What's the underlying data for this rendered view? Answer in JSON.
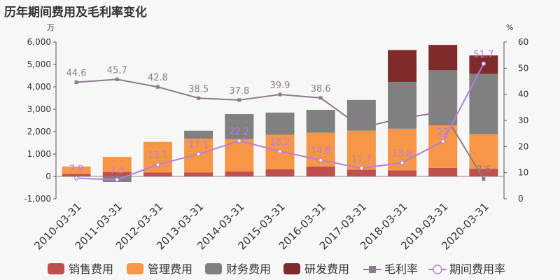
{
  "title": "历年期间费用及毛利率变化",
  "chart_data": {
    "type": "bar",
    "stacked": true,
    "left_unit": "万",
    "right_unit": "%",
    "categories": [
      "2010-03-31",
      "2011-03-31",
      "2012-03-31",
      "2013-03-31",
      "2014-03-31",
      "2015-03-31",
      "2016-03-31",
      "2017-03-31",
      "2018-03-31",
      "2019-03-31",
      "2020-03-31"
    ],
    "left_ylim": [
      -1000,
      6000
    ],
    "left_ticks": [
      "-1,000",
      "0",
      "1,000",
      "2,000",
      "3,000",
      "4,000",
      "5,000",
      "6,000"
    ],
    "right_ylim": [
      0,
      60
    ],
    "right_ticks": [
      "0",
      "10",
      "20",
      "30",
      "40",
      "50",
      "60"
    ],
    "bar_series": [
      {
        "name": "销售费用",
        "color": "#c0504d",
        "values": [
          110,
          200,
          180,
          180,
          220,
          320,
          440,
          300,
          270,
          380,
          340
        ]
      },
      {
        "name": "管理费用",
        "color": "#f79646",
        "values": [
          330,
          670,
          1360,
          1500,
          1440,
          1540,
          1510,
          1740,
          1860,
          1900,
          1540
        ]
      },
      {
        "name": "财务费用",
        "color": "#808080",
        "values": [
          0,
          -250,
          0,
          360,
          1120,
          990,
          1020,
          1370,
          2090,
          2460,
          2700
        ]
      },
      {
        "name": "研发费用",
        "color": "#7f2b2b",
        "values": [
          0,
          0,
          0,
          0,
          0,
          0,
          0,
          0,
          1420,
          1130,
          820
        ]
      }
    ],
    "line_series": [
      {
        "name": "毛利率",
        "color": "#8c7b8c",
        "marker": "square",
        "values": [
          44.6,
          45.7,
          42.8,
          38.5,
          37.8,
          39.9,
          38.6,
          27.3,
          30.8,
          33.3,
          7.6
        ],
        "labels": [
          "44.6",
          "45.7",
          "42.8",
          "38.5",
          "37.8",
          "39.9",
          "38.6",
          "27.3",
          "30.8",
          "33.3",
          "7.6"
        ]
      },
      {
        "name": "期间费用率",
        "color": "#b57edc",
        "marker": "circle",
        "values": [
          7.9,
          7.3,
          13.1,
          17.1,
          22.2,
          18.2,
          14.8,
          11.7,
          13.8,
          22,
          51.7
        ],
        "labels": [
          "7.9",
          "7.3",
          "13.1",
          "17.1",
          "22.2",
          "18.2",
          "14.8",
          "11.7",
          "13.8",
          "22",
          "51.7"
        ]
      }
    ],
    "legend_placement": "bottom",
    "grid": false
  }
}
